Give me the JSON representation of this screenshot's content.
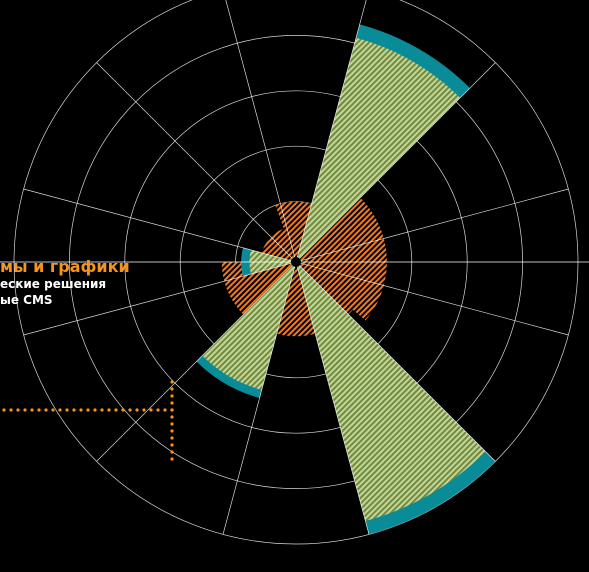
{
  "caption": {
    "title": "мы и графики",
    "line1": "еские решения",
    "line2": "ые CMS"
  },
  "colors": {
    "background": "#000000",
    "grid": "#ffffff",
    "teal": "#0a8c98",
    "hatch_light": "#c5d49a",
    "hatch_dark": "#6f8c3c",
    "orange": "#f47a20",
    "caption_accent": "#f7941d",
    "dots": "#f7941d"
  },
  "chart_data": {
    "type": "polar-area",
    "sectors": 12,
    "rings": 5,
    "rmax": 5,
    "sector_values": [
      {
        "sector": 1,
        "outer": 4.35,
        "inner": 4.1,
        "hatched": true
      },
      {
        "sector": 7,
        "outer": 2.45,
        "inner": 2.3,
        "hatched": true
      },
      {
        "sector": 5,
        "outer": 5.0,
        "inner": 4.75,
        "hatched": true
      },
      {
        "sector": 9,
        "outer": 0.9,
        "inner": 0.75,
        "hatched": true
      }
    ],
    "orange_hatched_segments": [
      {
        "start_deg": -55,
        "end_deg": 40,
        "radius": 1.55
      },
      {
        "start_deg": 40,
        "end_deg": 180,
        "radius": 1.25
      },
      {
        "start_deg": -110,
        "end_deg": -55,
        "radius": 1.0
      },
      {
        "start_deg": 180,
        "end_deg": 250,
        "radius": 0.55
      }
    ]
  }
}
